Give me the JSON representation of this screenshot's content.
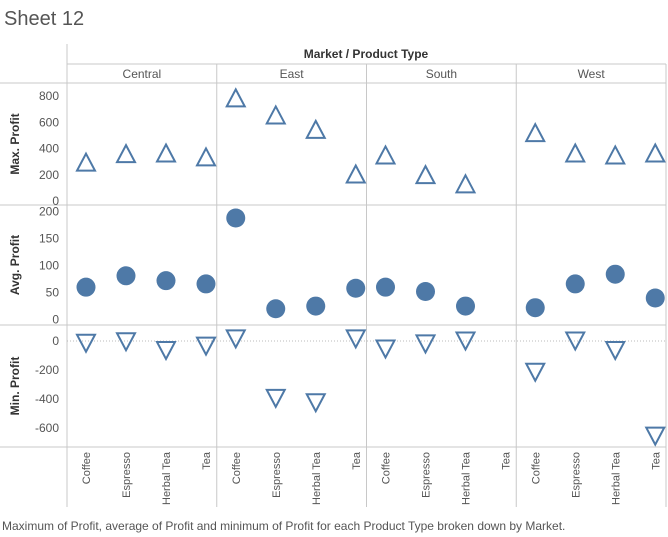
{
  "title": "Sheet 12",
  "caption": "Maximum of Profit, average of Profit and minimum of Profit for each Product Type broken down by Market.",
  "chart_data": {
    "type": "scatter",
    "header": "Market / Product Type",
    "markets": [
      "Central",
      "East",
      "South",
      "West"
    ],
    "categories": [
      "Coffee",
      "Espresso",
      "Herbal Tea",
      "Tea"
    ],
    "panes": [
      {
        "measure": "Max. Profit",
        "marker": "triangle-up",
        "ylim": [
          -30,
          900
        ],
        "ticks": [
          0,
          200,
          400,
          600,
          800
        ],
        "values": {
          "Central": [
            285,
            350,
            355,
            325
          ],
          "East": [
            775,
            645,
            535,
            195
          ],
          "South": [
            340,
            190,
            120,
            null
          ],
          "West": [
            510,
            355,
            340,
            355
          ]
        }
      },
      {
        "measure": "Avg. Profit",
        "marker": "circle",
        "ylim": [
          -10,
          212
        ],
        "ticks": [
          0,
          50,
          100,
          150,
          200
        ],
        "values": {
          "Central": [
            60,
            81,
            72,
            66
          ],
          "East": [
            188,
            20,
            25,
            58
          ],
          "South": [
            60,
            52,
            25,
            null
          ],
          "West": [
            22,
            66,
            84,
            40
          ]
        }
      },
      {
        "measure": "Min. Profit",
        "marker": "triangle-down",
        "ylim": [
          -730,
          110
        ],
        "ticks": [
          0,
          -200,
          -400,
          -600
        ],
        "values": {
          "Central": [
            -5,
            5,
            -55,
            -25
          ],
          "East": [
            25,
            -385,
            -415,
            25
          ],
          "South": [
            -45,
            -10,
            10,
            null
          ],
          "West": [
            -205,
            10,
            -55,
            -645
          ]
        }
      }
    ]
  }
}
